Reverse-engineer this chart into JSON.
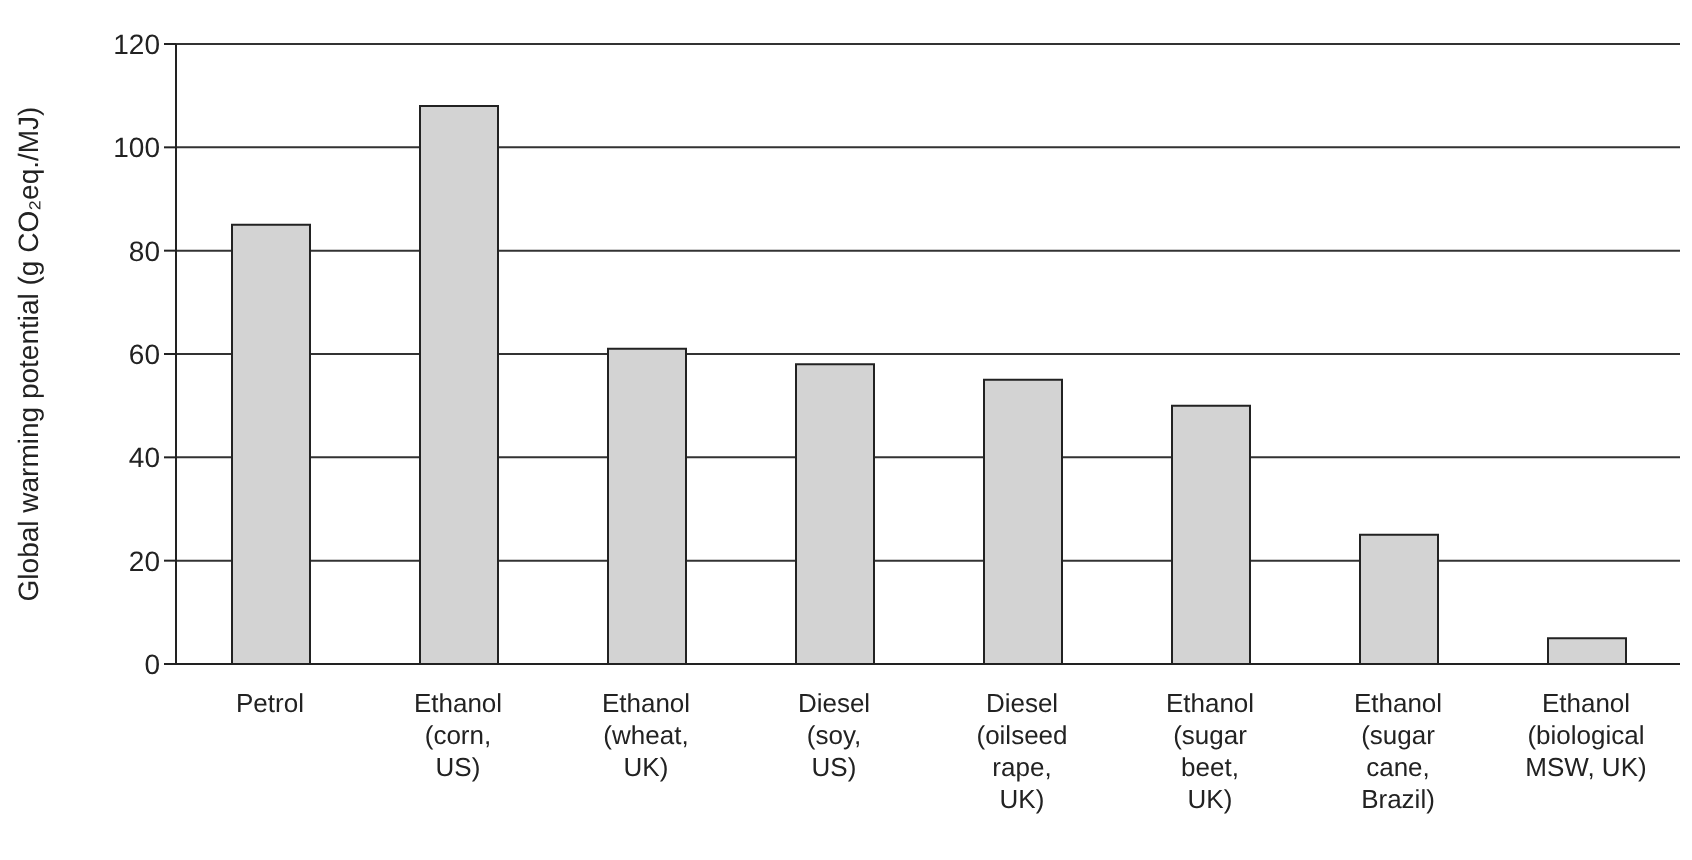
{
  "chart_data": {
    "type": "bar",
    "ylabel": "Global warming potential (g CO₂eq./MJ)",
    "categories": [
      "Petrol",
      "Ethanol\n(corn,\nUS)",
      "Ethanol\n(wheat,\nUK)",
      "Diesel\n(soy,\nUS)",
      "Diesel\n(oilseed\nrape,\nUK)",
      "Ethanol\n(sugar\nbeet,\nUK)",
      "Ethanol\n(sugar\ncane,\nBrazil)",
      "Ethanol\n(biological\nMSW, UK)"
    ],
    "values": [
      85,
      108,
      61,
      58,
      55,
      50,
      25,
      5
    ],
    "color": "#d3d3d3",
    "ylim": [
      0,
      120
    ],
    "yticks": [
      0,
      20,
      40,
      60,
      80,
      100,
      120
    ],
    "grid": "y"
  }
}
